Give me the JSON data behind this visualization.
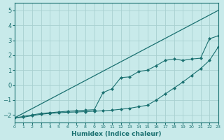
{
  "xlabel": "Humidex (Indice chaleur)",
  "bg_color": "#c8eaea",
  "grid_color": "#a8d0d0",
  "line_color": "#1a7070",
  "xmin": 0,
  "xmax": 23,
  "ymin": -2.5,
  "ymax": 5.5,
  "yticks": [
    -2,
    -1,
    0,
    1,
    2,
    3,
    4,
    5
  ],
  "xticks": [
    0,
    1,
    2,
    3,
    4,
    5,
    6,
    7,
    8,
    9,
    10,
    11,
    12,
    13,
    14,
    15,
    16,
    17,
    18,
    19,
    20,
    21,
    22,
    23
  ],
  "line1_x": [
    0,
    23
  ],
  "line1_y": [
    -2.2,
    5.0
  ],
  "line2_x": [
    0,
    1,
    2,
    3,
    4,
    5,
    6,
    7,
    8,
    9,
    10,
    11,
    12,
    13,
    14,
    15,
    16,
    17,
    18,
    19,
    20,
    21,
    22,
    23
  ],
  "line2_y": [
    -2.2,
    -2.15,
    -2.05,
    -1.95,
    -1.9,
    -1.85,
    -1.82,
    -1.8,
    -1.78,
    -1.75,
    -1.72,
    -1.68,
    -1.62,
    -1.55,
    -1.45,
    -1.35,
    -1.0,
    -0.6,
    -0.2,
    0.2,
    0.65,
    1.1,
    1.65,
    2.55
  ],
  "line3_x": [
    0,
    1,
    2,
    3,
    4,
    5,
    6,
    7,
    8,
    9,
    10,
    11,
    12,
    13,
    14,
    15,
    16,
    17,
    18,
    19,
    20,
    21,
    22,
    23
  ],
  "line3_y": [
    -2.2,
    -2.1,
    -2.0,
    -1.9,
    -1.85,
    -1.8,
    -1.75,
    -1.72,
    -1.68,
    -1.65,
    -0.5,
    -0.25,
    0.5,
    0.55,
    0.9,
    1.0,
    1.3,
    1.65,
    1.75,
    1.65,
    1.75,
    1.8,
    3.1,
    3.3
  ]
}
